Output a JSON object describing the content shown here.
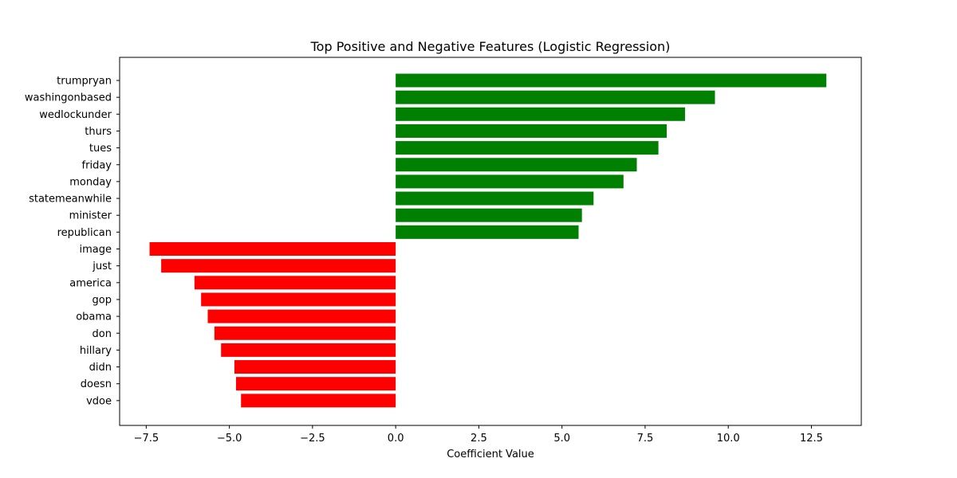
{
  "chart_data": {
    "type": "bar",
    "orientation": "horizontal",
    "title": "Top Positive and Negative Features (Logistic Regression)",
    "xlabel": "Coefficient Value",
    "ylabel": "",
    "xlim": [
      -8.3,
      14.0
    ],
    "xticks": [
      -7.5,
      -5.0,
      -2.5,
      0.0,
      2.5,
      5.0,
      7.5,
      10.0,
      12.5
    ],
    "xtick_labels": [
      "−7.5",
      "−5.0",
      "−2.5",
      "0.0",
      "2.5",
      "5.0",
      "7.5",
      "10.0",
      "12.5"
    ],
    "grid": false,
    "colors": {
      "positive": "#008000",
      "negative": "#ff0000"
    },
    "categories": [
      "trumpryan",
      "washingonbased",
      "wedlockunder",
      "thurs",
      "tues",
      "friday",
      "monday",
      "statemeanwhile",
      "minister",
      "republican",
      "image",
      "just",
      "america",
      "gop",
      "obama",
      "don",
      "hillary",
      "didn",
      "doesn",
      "vdoe"
    ],
    "values": [
      12.95,
      9.6,
      8.7,
      8.15,
      7.9,
      7.25,
      6.85,
      5.95,
      5.6,
      5.5,
      -7.4,
      -7.05,
      -6.05,
      -5.85,
      -5.65,
      -5.45,
      -5.25,
      -4.85,
      -4.8,
      -4.65
    ]
  }
}
